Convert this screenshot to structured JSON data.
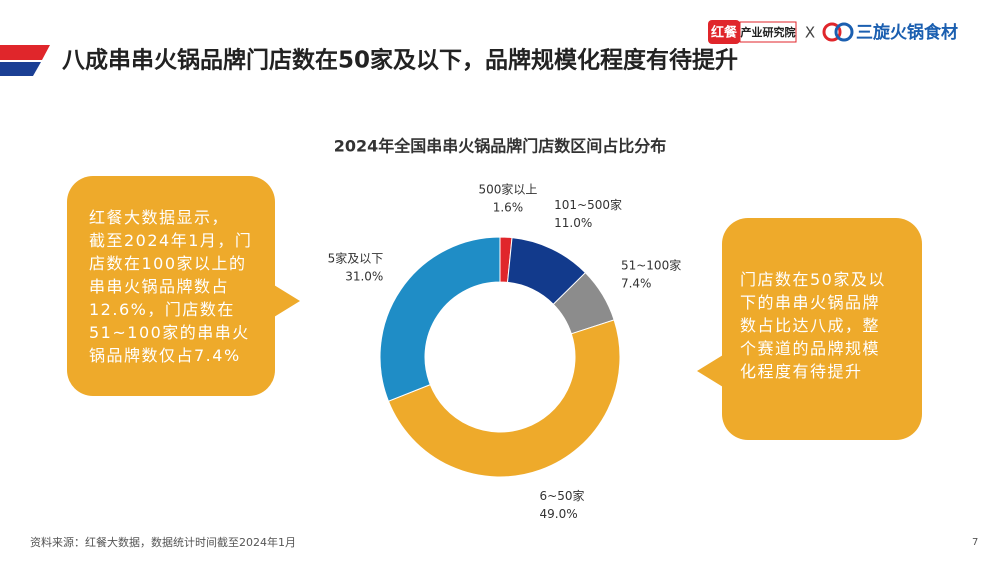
{
  "header": {
    "title": "八成串串火锅品牌门店数在50家及以下，品牌规模化程度有待提升",
    "logo_brand": "红餐",
    "logo_sub": "产业研究院",
    "logo_x": "X",
    "logo_partner": "三旋火锅食材"
  },
  "chart_data": {
    "type": "pie",
    "donut": true,
    "title": "2024年全国串串火锅品牌门店数区间占比分布",
    "categories": [
      "500家以上",
      "101~500家",
      "51~100家",
      "6~50家",
      "5家及以下"
    ],
    "values": [
      1.6,
      11.0,
      7.4,
      49.0,
      31.0
    ],
    "value_labels": [
      "1.6%",
      "11.0%",
      "7.4%",
      "49.0%",
      "31.0%"
    ],
    "colors": [
      "#e0262b",
      "#123a8c",
      "#8c8c8c",
      "#eeaa2b",
      "#1f8dc6"
    ]
  },
  "callouts": {
    "left": [
      "红餐大数据显示，",
      "截至2024年1月，门",
      "店数在100家以上的",
      "串串火锅品牌数占",
      "12.6%，门店数在",
      "51~100家的串串火",
      "锅品牌数仅占7.4%"
    ],
    "right": [
      "门店数在50家及以",
      "下的串串火锅品牌",
      "数占比达八成，整",
      "个赛道的品牌规模",
      "化程度有待提升"
    ]
  },
  "footer": {
    "source": "资料来源：红餐大数据，数据统计时间截至2024年1月",
    "page": "7"
  }
}
